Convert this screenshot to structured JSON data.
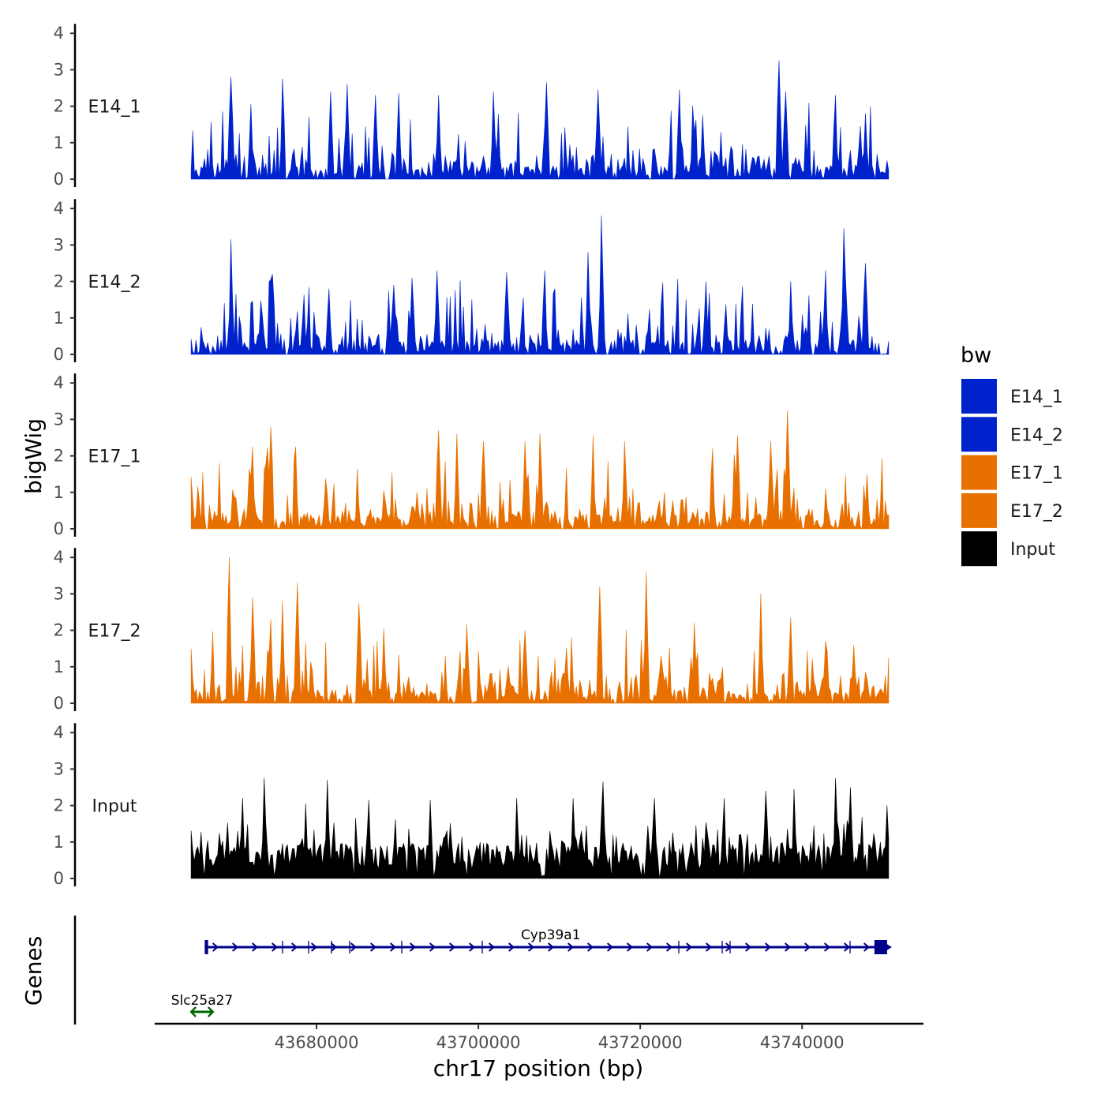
{
  "chart_data": {
    "type": "area",
    "title": "",
    "chromosome": "chr17",
    "xlabel": "chr17 position (bp)",
    "ylabel": "bigWig",
    "genes_panel_label": "Genes",
    "xlim": [
      43660000,
      43755000
    ],
    "x_ticks": [
      43680000,
      43700000,
      43720000,
      43740000
    ],
    "x_tick_labels": [
      "43680000",
      "43700000",
      "43720000",
      "43740000"
    ],
    "ylim": [
      0,
      4
    ],
    "y_ticks": [
      0,
      1,
      2,
      3,
      4
    ],
    "y_tick_labels": [
      "0",
      "1",
      "2",
      "3",
      "4"
    ],
    "data_range": [
      43664500,
      43750700
    ],
    "series": [
      {
        "name": "E14_1",
        "color": "#0022CC",
        "seed": 11,
        "peaks": [
          [
            43669400,
            2.8
          ],
          [
            43671900,
            2.05
          ],
          [
            43675800,
            2.75
          ],
          [
            43681700,
            2.4
          ],
          [
            43683700,
            2.6
          ],
          [
            43687300,
            2.3
          ],
          [
            43690200,
            2.35
          ],
          [
            43695000,
            2.3
          ],
          [
            43701900,
            2.4
          ],
          [
            43708500,
            2.65
          ],
          [
            43714800,
            2.45
          ],
          [
            43724800,
            2.45
          ],
          [
            43727700,
            1.75
          ],
          [
            43737100,
            3.25
          ],
          [
            43738000,
            2.4
          ],
          [
            43744100,
            2.3
          ],
          [
            43747800,
            1.8
          ]
        ]
      },
      {
        "name": "E14_2",
        "color": "#0022CC",
        "seed": 23,
        "peaks": [
          [
            43669500,
            3.15
          ],
          [
            43674500,
            2.2
          ],
          [
            43681500,
            1.8
          ],
          [
            43689600,
            1.9
          ],
          [
            43691700,
            2.1
          ],
          [
            43694800,
            2.3
          ],
          [
            43703500,
            2.25
          ],
          [
            43708300,
            2.3
          ],
          [
            43713500,
            2.8
          ],
          [
            43715200,
            3.8
          ],
          [
            43728200,
            2.0
          ],
          [
            43738500,
            2.0
          ],
          [
            43742800,
            2.3
          ],
          [
            43745200,
            3.45
          ],
          [
            43747800,
            2.5
          ]
        ]
      },
      {
        "name": "E17_1",
        "color": "#E87000",
        "seed": 37,
        "peaks": [
          [
            43672000,
            2.25
          ],
          [
            43674400,
            2.8
          ],
          [
            43677400,
            2.25
          ],
          [
            43695100,
            2.7
          ],
          [
            43697300,
            2.6
          ],
          [
            43700600,
            2.4
          ],
          [
            43705700,
            2.4
          ],
          [
            43707500,
            2.6
          ],
          [
            43714200,
            2.55
          ],
          [
            43718000,
            2.4
          ],
          [
            43729000,
            2.2
          ],
          [
            43732100,
            2.55
          ],
          [
            43736100,
            2.4
          ],
          [
            43738100,
            3.25
          ],
          [
            43748000,
            1.5
          ]
        ]
      },
      {
        "name": "E17_2",
        "color": "#E87000",
        "seed": 53,
        "peaks": [
          [
            43669300,
            4.0
          ],
          [
            43672100,
            2.9
          ],
          [
            43674400,
            2.3
          ],
          [
            43675800,
            2.8
          ],
          [
            43677600,
            3.3
          ],
          [
            43685200,
            2.75
          ],
          [
            43688300,
            2.05
          ],
          [
            43698600,
            2.15
          ],
          [
            43705700,
            2.0
          ],
          [
            43715000,
            3.2
          ],
          [
            43720700,
            3.6
          ],
          [
            43726600,
            2.2
          ],
          [
            43734900,
            3.0
          ],
          [
            43738600,
            2.35
          ],
          [
            43742800,
            1.7
          ],
          [
            43746400,
            1.6
          ]
        ]
      },
      {
        "name": "Input",
        "color": "#000000",
        "seed": 71,
        "peaks": [
          [
            43670800,
            2.2
          ],
          [
            43673600,
            2.75
          ],
          [
            43678700,
            2.05
          ],
          [
            43681300,
            2.7
          ],
          [
            43686500,
            2.15
          ],
          [
            43694100,
            2.15
          ],
          [
            43704800,
            2.2
          ],
          [
            43711700,
            2.2
          ],
          [
            43715300,
            2.65
          ],
          [
            43721800,
            2.2
          ],
          [
            43730300,
            2.2
          ],
          [
            43735600,
            2.4
          ],
          [
            43739100,
            2.45
          ],
          [
            43744100,
            2.75
          ],
          [
            43745900,
            2.5
          ],
          [
            43750500,
            2.0
          ]
        ]
      }
    ],
    "legend": {
      "title": "bw",
      "position": "right",
      "entries": [
        {
          "label": "E14_1",
          "color": "#0022CC"
        },
        {
          "label": "E14_2",
          "color": "#0022CC"
        },
        {
          "label": "E17_1",
          "color": "#E87000"
        },
        {
          "label": "E17_2",
          "color": "#E87000"
        },
        {
          "label": "Input",
          "color": "#000000"
        }
      ]
    },
    "genes": [
      {
        "name": "Cyp39a1",
        "start": 43666400,
        "end": 43750500,
        "strand": "+",
        "color": "#00008B",
        "row": 1
      },
      {
        "name": "Slc25a27",
        "start": 43664500,
        "end": 43667200,
        "strand": "-",
        "color": "#006400",
        "row": 2
      }
    ]
  }
}
